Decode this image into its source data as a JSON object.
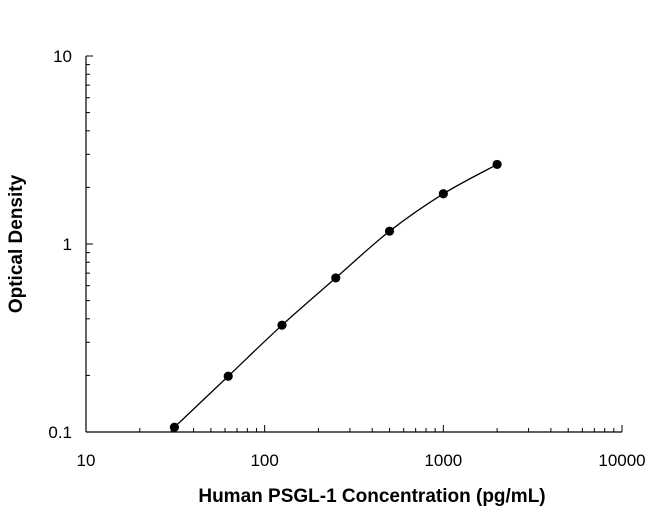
{
  "chart_data": {
    "type": "scatter",
    "title": "",
    "xlabel": "Human PSGL-1 Concentration (pg/mL)",
    "ylabel": "Optical Density",
    "x_scale": "log",
    "y_scale": "log",
    "xlim": [
      10,
      10000
    ],
    "ylim": [
      0.1,
      10
    ],
    "x_tick_labels": [
      "10",
      "100",
      "1000",
      "10000"
    ],
    "y_tick_labels": [
      "0.1",
      "1",
      "10"
    ],
    "grid": false,
    "legend": "none",
    "series": [
      {
        "x": [
          31.25,
          62.5,
          125,
          250,
          500,
          1000,
          2000
        ],
        "y": [
          0.106,
          0.198,
          0.37,
          0.66,
          1.17,
          1.85,
          2.65
        ]
      }
    ],
    "fit_curve": true
  }
}
